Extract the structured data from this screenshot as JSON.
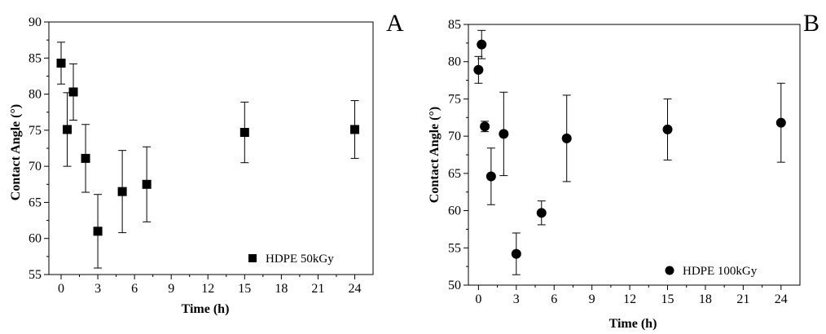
{
  "chart_data": [
    {
      "type": "scatter",
      "panel_label": "A",
      "xlabel": "Time (h)",
      "ylabel": "Contact Angle (°)",
      "xlim": [
        -1,
        25.5
      ],
      "ylim": [
        55,
        90
      ],
      "x_ticks": [
        0,
        3,
        6,
        9,
        12,
        15,
        18,
        21,
        24
      ],
      "y_ticks": [
        55,
        60,
        65,
        70,
        75,
        80,
        85,
        90
      ],
      "marker": "square",
      "legend": "bottom-right",
      "grid": false,
      "series": [
        {
          "name": "HDPE 50kGy",
          "points": [
            {
              "x": 0,
              "y": 84.3,
              "err": 2.9
            },
            {
              "x": 0.5,
              "y": 75.1,
              "err": 5.1
            },
            {
              "x": 1,
              "y": 80.3,
              "err": 3.9
            },
            {
              "x": 2,
              "y": 71.1,
              "err": 4.7
            },
            {
              "x": 3,
              "y": 61.0,
              "err": 5.1
            },
            {
              "x": 5,
              "y": 66.5,
              "err": 5.7
            },
            {
              "x": 7,
              "y": 67.5,
              "err": 5.2
            },
            {
              "x": 15,
              "y": 74.7,
              "err": 4.2
            },
            {
              "x": 24,
              "y": 75.1,
              "err": 4.0
            }
          ]
        }
      ]
    },
    {
      "type": "scatter",
      "panel_label": "B",
      "xlabel": "Time (h)",
      "ylabel": "Contact Angle (°)",
      "xlim": [
        -0.8,
        25.5
      ],
      "ylim": [
        50,
        85
      ],
      "x_ticks": [
        0,
        3,
        6,
        9,
        12,
        15,
        18,
        21,
        24
      ],
      "y_ticks": [
        50,
        55,
        60,
        65,
        70,
        75,
        80,
        85
      ],
      "marker": "circle",
      "legend": "bottom-right",
      "grid": false,
      "series": [
        {
          "name": "HDPE 100kGy",
          "points": [
            {
              "x": 0,
              "y": 78.9,
              "err": 1.8
            },
            {
              "x": 0.25,
              "y": 82.3,
              "err": 1.9
            },
            {
              "x": 0.5,
              "y": 71.3,
              "err": 0.7
            },
            {
              "x": 1,
              "y": 64.6,
              "err": 3.8
            },
            {
              "x": 2,
              "y": 70.3,
              "err": 5.6
            },
            {
              "x": 3,
              "y": 54.2,
              "err": 2.8
            },
            {
              "x": 5,
              "y": 59.7,
              "err": 1.6
            },
            {
              "x": 7,
              "y": 69.7,
              "err": 5.8
            },
            {
              "x": 15,
              "y": 70.9,
              "err": 4.1
            },
            {
              "x": 24,
              "y": 71.8,
              "err": 5.3
            }
          ]
        }
      ]
    }
  ]
}
